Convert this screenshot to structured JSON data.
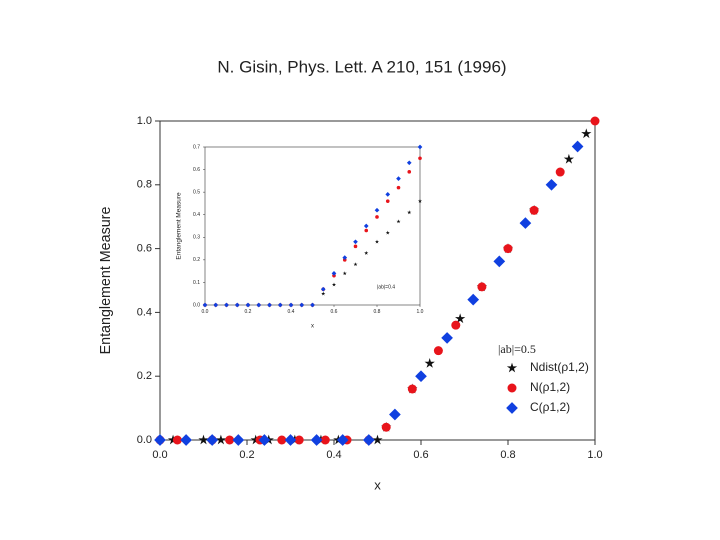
{
  "title": "N. Gisin, Phys. Lett. A 210, 151 (1996)",
  "chart_data": [
    {
      "type": "scatter",
      "xlabel": "x",
      "ylabel": "Entanglement Measure",
      "xlim": [
        0,
        1
      ],
      "ylim": [
        0,
        1
      ],
      "xticks": [
        {
          "value": 0,
          "label": "0.0"
        },
        {
          "value": 0.2,
          "label": "0.2"
        },
        {
          "value": 0.4,
          "label": "0.4"
        },
        {
          "value": 0.6,
          "label": "0.6"
        },
        {
          "value": 0.8,
          "label": "0.8"
        },
        {
          "value": 1,
          "label": "1.0"
        }
      ],
      "yticks": [
        {
          "value": 0,
          "label": "0.0"
        },
        {
          "value": 0.2,
          "label": "0.2"
        },
        {
          "value": 0.4,
          "label": "0.4"
        },
        {
          "value": 0.6,
          "label": "0.6"
        },
        {
          "value": 0.8,
          "label": "0.8"
        },
        {
          "value": 1,
          "label": "1.0"
        }
      ],
      "legend_title": "|ab|=0.5",
      "legend": "lower right",
      "series": [
        {
          "name": "Ndist(ρ1,2)",
          "color": "#111111",
          "marker": "star",
          "x": [
            0.03,
            0.1,
            0.14,
            0.22,
            0.25,
            0.31,
            0.37,
            0.41,
            0.5,
            0.52,
            0.58,
            0.62,
            0.69,
            0.74,
            0.8,
            0.86,
            0.94,
            0.98
          ],
          "values": [
            0,
            0,
            0,
            0,
            0,
            0,
            0,
            0,
            0,
            0.04,
            0.16,
            0.24,
            0.38,
            0.48,
            0.6,
            0.72,
            0.88,
            0.96
          ]
        },
        {
          "name": "N(ρ1,2)",
          "color": "#e8141b",
          "marker": "circle",
          "x": [
            0,
            0.04,
            0.12,
            0.16,
            0.23,
            0.28,
            0.32,
            0.38,
            0.43,
            0.48,
            0.52,
            0.58,
            0.64,
            0.68,
            0.74,
            0.8,
            0.86,
            0.92,
            1.0
          ],
          "values": [
            0,
            0,
            0,
            0,
            0,
            0,
            0,
            0,
            0,
            0,
            0.04,
            0.16,
            0.28,
            0.36,
            0.48,
            0.6,
            0.72,
            0.84,
            1.0
          ]
        },
        {
          "name": "C(ρ1,2)",
          "color": "#1040e0",
          "marker": "diamond",
          "x": [
            0,
            0.06,
            0.12,
            0.18,
            0.24,
            0.3,
            0.36,
            0.42,
            0.48,
            0.54,
            0.6,
            0.66,
            0.72,
            0.78,
            0.84,
            0.9,
            0.96
          ],
          "values": [
            0,
            0,
            0,
            0,
            0,
            0,
            0,
            0,
            0,
            0.08,
            0.2,
            0.32,
            0.44,
            0.56,
            0.68,
            0.8,
            0.92
          ]
        }
      ]
    },
    {
      "type": "scatter",
      "xlabel": "x",
      "ylabel": "Entanglement Measure",
      "annotation": "|ab|=0.4",
      "xlim": [
        0,
        1
      ],
      "ylim": [
        0,
        0.7
      ],
      "xticks": [
        {
          "value": 0,
          "label": "0.0"
        },
        {
          "value": 0.2,
          "label": "0.2"
        },
        {
          "value": 0.4,
          "label": "0.4"
        },
        {
          "value": 0.6,
          "label": "0.6"
        },
        {
          "value": 0.8,
          "label": "0.8"
        },
        {
          "value": 1,
          "label": "1.0"
        }
      ],
      "yticks": [
        {
          "value": 0,
          "label": "0.0"
        },
        0.1,
        0.2,
        0.3,
        0.4,
        0.5,
        0.6,
        0.7
      ],
      "series": [
        {
          "color": "#111111",
          "marker": "star",
          "x": [
            0,
            0.05,
            0.1,
            0.15,
            0.2,
            0.25,
            0.3,
            0.35,
            0.4,
            0.45,
            0.5,
            0.55,
            0.6,
            0.65,
            0.7,
            0.75,
            0.8,
            0.85,
            0.9,
            0.95,
            1.0
          ],
          "values": [
            0,
            0,
            0,
            0,
            0,
            0,
            0,
            0,
            0,
            0,
            0,
            0.05,
            0.09,
            0.14,
            0.18,
            0.23,
            0.28,
            0.32,
            0.37,
            0.41,
            0.46
          ]
        },
        {
          "color": "#e8141b",
          "marker": "circle",
          "x": [
            0,
            0.05,
            0.1,
            0.15,
            0.2,
            0.25,
            0.3,
            0.35,
            0.4,
            0.45,
            0.5,
            0.55,
            0.6,
            0.65,
            0.7,
            0.75,
            0.8,
            0.85,
            0.9,
            0.95,
            1.0
          ],
          "values": [
            0,
            0,
            0,
            0,
            0,
            0,
            0,
            0,
            0,
            0,
            0,
            0.07,
            0.13,
            0.2,
            0.26,
            0.33,
            0.39,
            0.46,
            0.52,
            0.59,
            0.65
          ]
        },
        {
          "color": "#1040e0",
          "marker": "diamond",
          "x": [
            0,
            0.05,
            0.1,
            0.15,
            0.2,
            0.25,
            0.3,
            0.35,
            0.4,
            0.45,
            0.5,
            0.55,
            0.6,
            0.65,
            0.7,
            0.75,
            0.8,
            0.85,
            0.9,
            0.95,
            1.0
          ],
          "values": [
            0,
            0,
            0,
            0,
            0,
            0,
            0,
            0,
            0,
            0,
            0,
            0.07,
            0.14,
            0.21,
            0.28,
            0.35,
            0.42,
            0.49,
            0.56,
            0.63,
            0.7
          ]
        }
      ]
    }
  ]
}
